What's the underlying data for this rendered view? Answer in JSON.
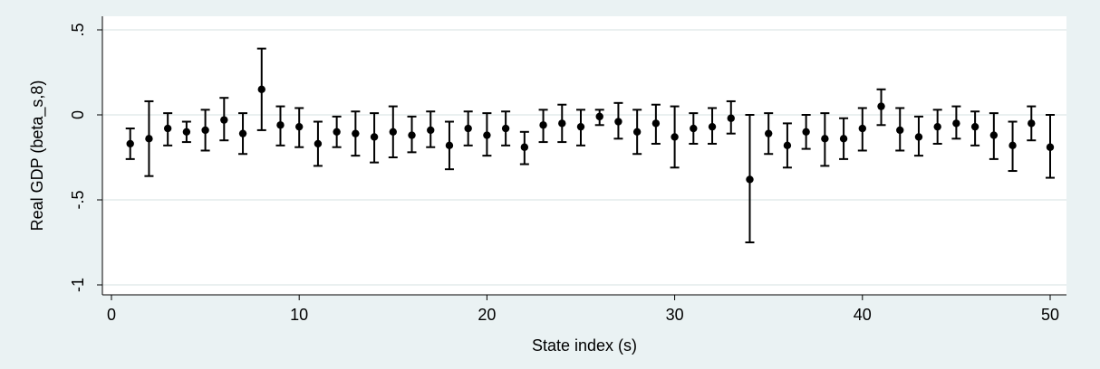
{
  "chart_data": {
    "type": "scatter",
    "title": "",
    "xlabel": "State index (s)",
    "ylabel": "Real GDP (beta_s,8)",
    "xlim": [
      0,
      50
    ],
    "ylim": [
      -1,
      0.5
    ],
    "x_ticks": [
      0,
      10,
      20,
      30,
      40,
      50
    ],
    "x_tick_labels": [
      "0",
      "10",
      "20",
      "30",
      "40",
      "50"
    ],
    "y_ticks": [
      -1,
      -0.5,
      0,
      0.5
    ],
    "y_tick_labels": [
      "-1",
      "-.5",
      "0",
      ".5"
    ],
    "grid": "horizontal",
    "colors": {
      "background": "#eaf2f3",
      "plot_area": "#ffffff",
      "marker": "#000000",
      "grid": "#e4ecec"
    },
    "x": [
      1,
      2,
      3,
      4,
      5,
      6,
      7,
      8,
      9,
      10,
      11,
      12,
      13,
      14,
      15,
      16,
      17,
      18,
      19,
      20,
      21,
      22,
      23,
      24,
      25,
      26,
      27,
      28,
      29,
      30,
      31,
      32,
      33,
      34,
      35,
      36,
      37,
      38,
      39,
      40,
      41,
      42,
      43,
      44,
      45,
      46,
      47,
      48,
      49,
      50
    ],
    "estimate": [
      -0.17,
      -0.14,
      -0.08,
      -0.1,
      -0.09,
      -0.03,
      -0.11,
      0.15,
      -0.06,
      -0.07,
      -0.17,
      -0.1,
      -0.11,
      -0.13,
      -0.1,
      -0.12,
      -0.09,
      -0.18,
      -0.08,
      -0.12,
      -0.08,
      -0.19,
      -0.06,
      -0.05,
      -0.07,
      -0.01,
      -0.04,
      -0.1,
      -0.05,
      -0.13,
      -0.08,
      -0.07,
      -0.02,
      -0.38,
      -0.11,
      -0.18,
      -0.1,
      -0.14,
      -0.14,
      -0.08,
      0.05,
      -0.09,
      -0.13,
      -0.07,
      -0.05,
      -0.07,
      -0.12,
      -0.18,
      -0.05,
      -0.19
    ],
    "lower": [
      -0.26,
      -0.36,
      -0.18,
      -0.16,
      -0.21,
      -0.15,
      -0.23,
      -0.09,
      -0.18,
      -0.19,
      -0.3,
      -0.19,
      -0.24,
      -0.28,
      -0.25,
      -0.22,
      -0.19,
      -0.32,
      -0.18,
      -0.24,
      -0.18,
      -0.29,
      -0.16,
      -0.16,
      -0.18,
      -0.06,
      -0.14,
      -0.23,
      -0.17,
      -0.31,
      -0.17,
      -0.17,
      -0.11,
      -0.75,
      -0.23,
      -0.31,
      -0.2,
      -0.3,
      -0.26,
      -0.21,
      -0.06,
      -0.21,
      -0.24,
      -0.17,
      -0.14,
      -0.18,
      -0.26,
      -0.33,
      -0.15,
      -0.37
    ],
    "upper": [
      -0.08,
      0.08,
      0.01,
      -0.04,
      0.03,
      0.1,
      0.01,
      0.39,
      0.05,
      0.04,
      -0.04,
      -0.01,
      0.02,
      0.01,
      0.05,
      -0.01,
      0.02,
      -0.04,
      0.02,
      0.01,
      0.02,
      -0.1,
      0.03,
      0.06,
      0.03,
      0.03,
      0.07,
      0.03,
      0.06,
      0.05,
      0.01,
      0.04,
      0.08,
      0.0,
      0.01,
      -0.05,
      0.0,
      0.01,
      -0.02,
      0.04,
      0.15,
      0.04,
      -0.01,
      0.03,
      0.05,
      0.02,
      0.01,
      -0.04,
      0.05,
      0.0
    ]
  }
}
